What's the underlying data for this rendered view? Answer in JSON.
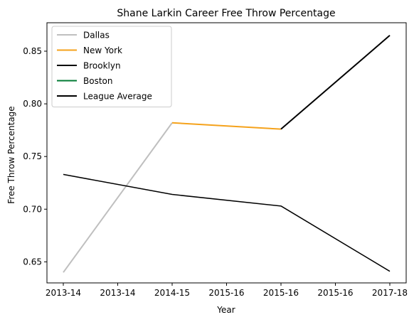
{
  "chart_data": {
    "type": "line",
    "title": "Shane Larkin Career Free Throw Percentage",
    "xlabel": "Year",
    "ylabel": "Free Throw Percentage",
    "x_tick_labels": [
      "2013-14",
      "2013-14",
      "2014-15",
      "2015-16",
      "2015-16",
      "2015-16",
      "2017-18"
    ],
    "xlim": [
      0,
      3
    ],
    "ylim": [
      0.63,
      0.877
    ],
    "y_ticks": [
      0.65,
      0.7,
      0.75,
      0.8,
      0.85
    ],
    "y_tick_labels": [
      "0.65",
      "0.70",
      "0.75",
      "0.80",
      "0.85"
    ],
    "grid": false,
    "legend_position": "top-left",
    "series": [
      {
        "name": "Dallas",
        "color": "#bfbfbf",
        "x": [
          0,
          1
        ],
        "values": [
          0.64,
          0.782
        ]
      },
      {
        "name": "New York",
        "color": "#f5a21b",
        "x": [
          1,
          2
        ],
        "values": [
          0.782,
          0.776
        ]
      },
      {
        "name": "Brooklyn",
        "color": "#000000",
        "x": [
          2,
          3
        ],
        "values": [
          0.776,
          0.865
        ]
      },
      {
        "name": "Boston",
        "color": "#007a33",
        "x": [],
        "values": []
      },
      {
        "name": "League Average",
        "color": "#000000",
        "x": [
          0,
          1,
          2,
          3
        ],
        "values": [
          0.733,
          0.714,
          0.703,
          0.641
        ]
      }
    ]
  }
}
